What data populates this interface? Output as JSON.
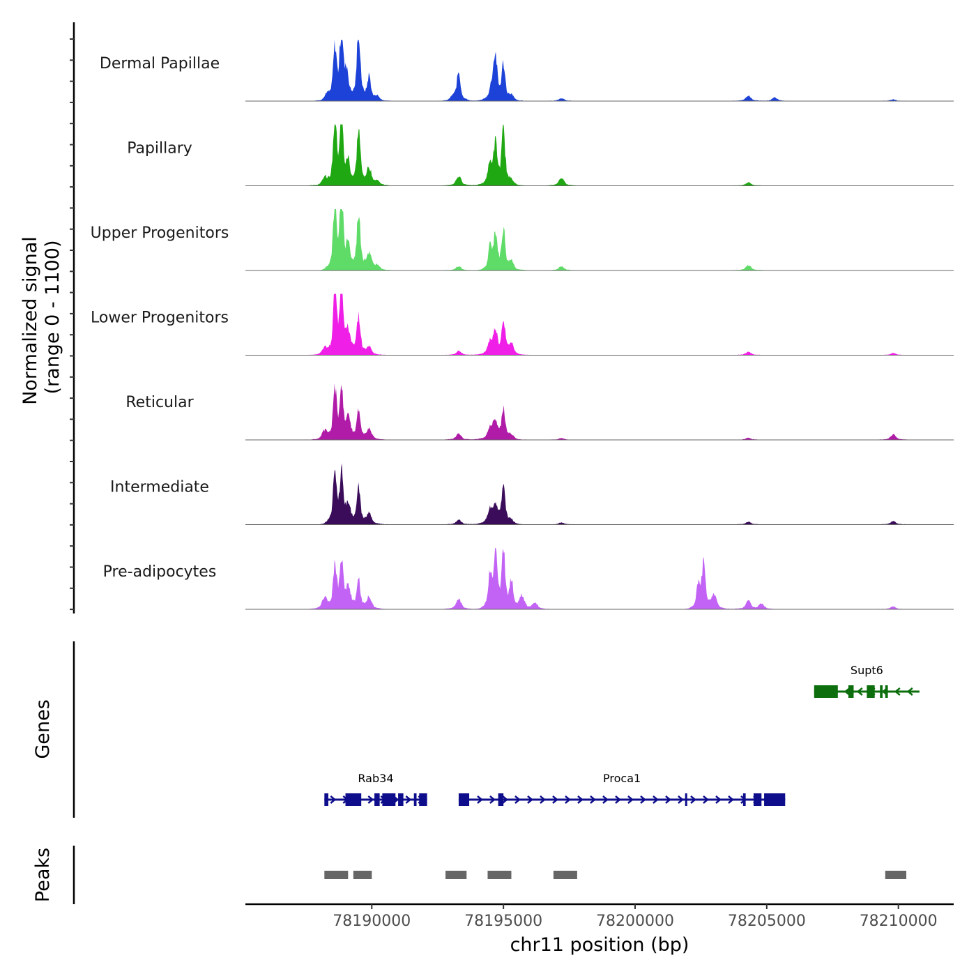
{
  "chart_data": {
    "type": "area",
    "subtype": "genome-browser coverage plot",
    "chromosome": "chr11",
    "xlabel": "chr11 position (bp)",
    "ylabel_line1": "Normalized signal",
    "ylabel_line2": "(range 0 - 1100)",
    "ylim": [
      0,
      1100
    ],
    "xlim": [
      78185200,
      78212100
    ],
    "x_ticks": [
      78190000,
      78195000,
      78200000,
      78205000,
      78210000
    ],
    "x_tick_labels": [
      "78190000",
      "78195000",
      "78200000",
      "78205000",
      "78210000"
    ],
    "series": [
      {
        "name": "Dermal Papillae",
        "color": "#1d42d8",
        "peaks": [
          {
            "pos": 78188300,
            "height": 80
          },
          {
            "pos": 78188600,
            "height": 760
          },
          {
            "pos": 78188850,
            "height": 1020
          },
          {
            "pos": 78189050,
            "height": 400
          },
          {
            "pos": 78189500,
            "height": 1060
          },
          {
            "pos": 78189900,
            "height": 360
          },
          {
            "pos": 78190200,
            "height": 70
          },
          {
            "pos": 78193300,
            "height": 440
          },
          {
            "pos": 78193100,
            "height": 60
          },
          {
            "pos": 78194600,
            "height": 280
          },
          {
            "pos": 78194700,
            "height": 520
          },
          {
            "pos": 78195000,
            "height": 520
          },
          {
            "pos": 78195300,
            "height": 70
          },
          {
            "pos": 78197200,
            "height": 40
          },
          {
            "pos": 78204300,
            "height": 80
          },
          {
            "pos": 78205300,
            "height": 50
          },
          {
            "pos": 78209800,
            "height": 25
          }
        ]
      },
      {
        "name": "Papillary",
        "color": "#1fa812",
        "peaks": [
          {
            "pos": 78188200,
            "height": 120
          },
          {
            "pos": 78188600,
            "height": 920
          },
          {
            "pos": 78188850,
            "height": 1000
          },
          {
            "pos": 78189100,
            "height": 330
          },
          {
            "pos": 78189500,
            "height": 840
          },
          {
            "pos": 78189900,
            "height": 250
          },
          {
            "pos": 78190200,
            "height": 60
          },
          {
            "pos": 78193300,
            "height": 140
          },
          {
            "pos": 78194500,
            "height": 300
          },
          {
            "pos": 78194700,
            "height": 560
          },
          {
            "pos": 78195000,
            "height": 800
          },
          {
            "pos": 78195300,
            "height": 70
          },
          {
            "pos": 78197200,
            "height": 120
          },
          {
            "pos": 78204300,
            "height": 50
          }
        ]
      },
      {
        "name": "Upper Progenitors",
        "color": "#5fdb67",
        "peaks": [
          {
            "pos": 78188600,
            "height": 1000
          },
          {
            "pos": 78188850,
            "height": 1080
          },
          {
            "pos": 78189100,
            "height": 400
          },
          {
            "pos": 78189500,
            "height": 880
          },
          {
            "pos": 78189900,
            "height": 250
          },
          {
            "pos": 78190200,
            "height": 60
          },
          {
            "pos": 78193300,
            "height": 60
          },
          {
            "pos": 78194500,
            "height": 360
          },
          {
            "pos": 78194700,
            "height": 520
          },
          {
            "pos": 78195000,
            "height": 620
          },
          {
            "pos": 78195300,
            "height": 120
          },
          {
            "pos": 78197200,
            "height": 60
          },
          {
            "pos": 78204300,
            "height": 80
          }
        ]
      },
      {
        "name": "Lower Progenitors",
        "color": "#ef1fe7",
        "peaks": [
          {
            "pos": 78188200,
            "height": 100
          },
          {
            "pos": 78188600,
            "height": 900
          },
          {
            "pos": 78188850,
            "height": 1060
          },
          {
            "pos": 78189100,
            "height": 300
          },
          {
            "pos": 78189500,
            "height": 600
          },
          {
            "pos": 78189900,
            "height": 120
          },
          {
            "pos": 78193300,
            "height": 60
          },
          {
            "pos": 78194500,
            "height": 200
          },
          {
            "pos": 78194700,
            "height": 350
          },
          {
            "pos": 78195000,
            "height": 520
          },
          {
            "pos": 78195300,
            "height": 160
          },
          {
            "pos": 78204300,
            "height": 50
          },
          {
            "pos": 78209800,
            "height": 30
          }
        ]
      },
      {
        "name": "Reticular",
        "color": "#b01ca8",
        "peaks": [
          {
            "pos": 78188200,
            "height": 130
          },
          {
            "pos": 78188600,
            "height": 720
          },
          {
            "pos": 78188850,
            "height": 660
          },
          {
            "pos": 78189100,
            "height": 290
          },
          {
            "pos": 78189500,
            "height": 420
          },
          {
            "pos": 78189900,
            "height": 160
          },
          {
            "pos": 78193300,
            "height": 90
          },
          {
            "pos": 78194500,
            "height": 160
          },
          {
            "pos": 78194700,
            "height": 230
          },
          {
            "pos": 78195000,
            "height": 430
          },
          {
            "pos": 78195300,
            "height": 60
          },
          {
            "pos": 78197200,
            "height": 25
          },
          {
            "pos": 78204300,
            "height": 30
          },
          {
            "pos": 78209800,
            "height": 80
          }
        ]
      },
      {
        "name": "Intermediate",
        "color": "#3a0c5a",
        "peaks": [
          {
            "pos": 78188600,
            "height": 820
          },
          {
            "pos": 78188850,
            "height": 760
          },
          {
            "pos": 78189100,
            "height": 250
          },
          {
            "pos": 78189500,
            "height": 530
          },
          {
            "pos": 78189900,
            "height": 160
          },
          {
            "pos": 78193300,
            "height": 70
          },
          {
            "pos": 78194500,
            "height": 200
          },
          {
            "pos": 78194700,
            "height": 250
          },
          {
            "pos": 78195000,
            "height": 560
          },
          {
            "pos": 78195300,
            "height": 50
          },
          {
            "pos": 78197200,
            "height": 30
          },
          {
            "pos": 78204300,
            "height": 40
          },
          {
            "pos": 78209800,
            "height": 50
          }
        ]
      },
      {
        "name": "Pre-adipocytes",
        "color": "#c263f5",
        "peaks": [
          {
            "pos": 78188200,
            "height": 160
          },
          {
            "pos": 78188600,
            "height": 620
          },
          {
            "pos": 78188850,
            "height": 700
          },
          {
            "pos": 78189100,
            "height": 300
          },
          {
            "pos": 78189500,
            "height": 420
          },
          {
            "pos": 78189900,
            "height": 180
          },
          {
            "pos": 78193300,
            "height": 150
          },
          {
            "pos": 78194500,
            "height": 550
          },
          {
            "pos": 78194700,
            "height": 760
          },
          {
            "pos": 78195000,
            "height": 830
          },
          {
            "pos": 78195300,
            "height": 400
          },
          {
            "pos": 78195700,
            "height": 200
          },
          {
            "pos": 78196200,
            "height": 90
          },
          {
            "pos": 78202400,
            "height": 350
          },
          {
            "pos": 78202600,
            "height": 660
          },
          {
            "pos": 78203000,
            "height": 220
          },
          {
            "pos": 78204300,
            "height": 120
          },
          {
            "pos": 78204800,
            "height": 80
          },
          {
            "pos": 78209800,
            "height": 40
          }
        ]
      }
    ],
    "genes_title": "Genes",
    "genes": [
      {
        "name": "Rab34",
        "start": 78188200,
        "end": 78192100,
        "strand": "+",
        "color": "#0e0e8c",
        "row": 2,
        "exons": [
          [
            78188200,
            78188350
          ],
          [
            78189000,
            78189600
          ],
          [
            78190100,
            78190300
          ],
          [
            78190400,
            78190900
          ],
          [
            78191000,
            78191200
          ],
          [
            78191600,
            78191700
          ],
          [
            78191800,
            78192100
          ]
        ]
      },
      {
        "name": "Proca1",
        "start": 78193300,
        "end": 78205700,
        "strand": "+",
        "color": "#0e0e8c",
        "row": 2,
        "exons": [
          [
            78193300,
            78193700
          ],
          [
            78194800,
            78195000
          ],
          [
            78201900,
            78201950
          ],
          [
            78204100,
            78204200
          ],
          [
            78204500,
            78204800
          ],
          [
            78204900,
            78205700
          ]
        ]
      },
      {
        "name": "Supt6",
        "start": 78206800,
        "end": 78210800,
        "strand": "-",
        "color": "#0c6e0c",
        "row": 1,
        "exons": [
          [
            78206800,
            78207700
          ],
          [
            78208100,
            78208300
          ],
          [
            78208800,
            78209100
          ],
          [
            78209300,
            78209400
          ],
          [
            78209500,
            78209600
          ]
        ]
      }
    ],
    "peaks_title": "Peaks",
    "peak_regions": [
      [
        78188200,
        78189100
      ],
      [
        78189300,
        78190000
      ],
      [
        78192800,
        78193600
      ],
      [
        78194400,
        78195300
      ],
      [
        78196900,
        78197800
      ],
      [
        78209500,
        78210300
      ]
    ],
    "peak_color": "#666666"
  }
}
